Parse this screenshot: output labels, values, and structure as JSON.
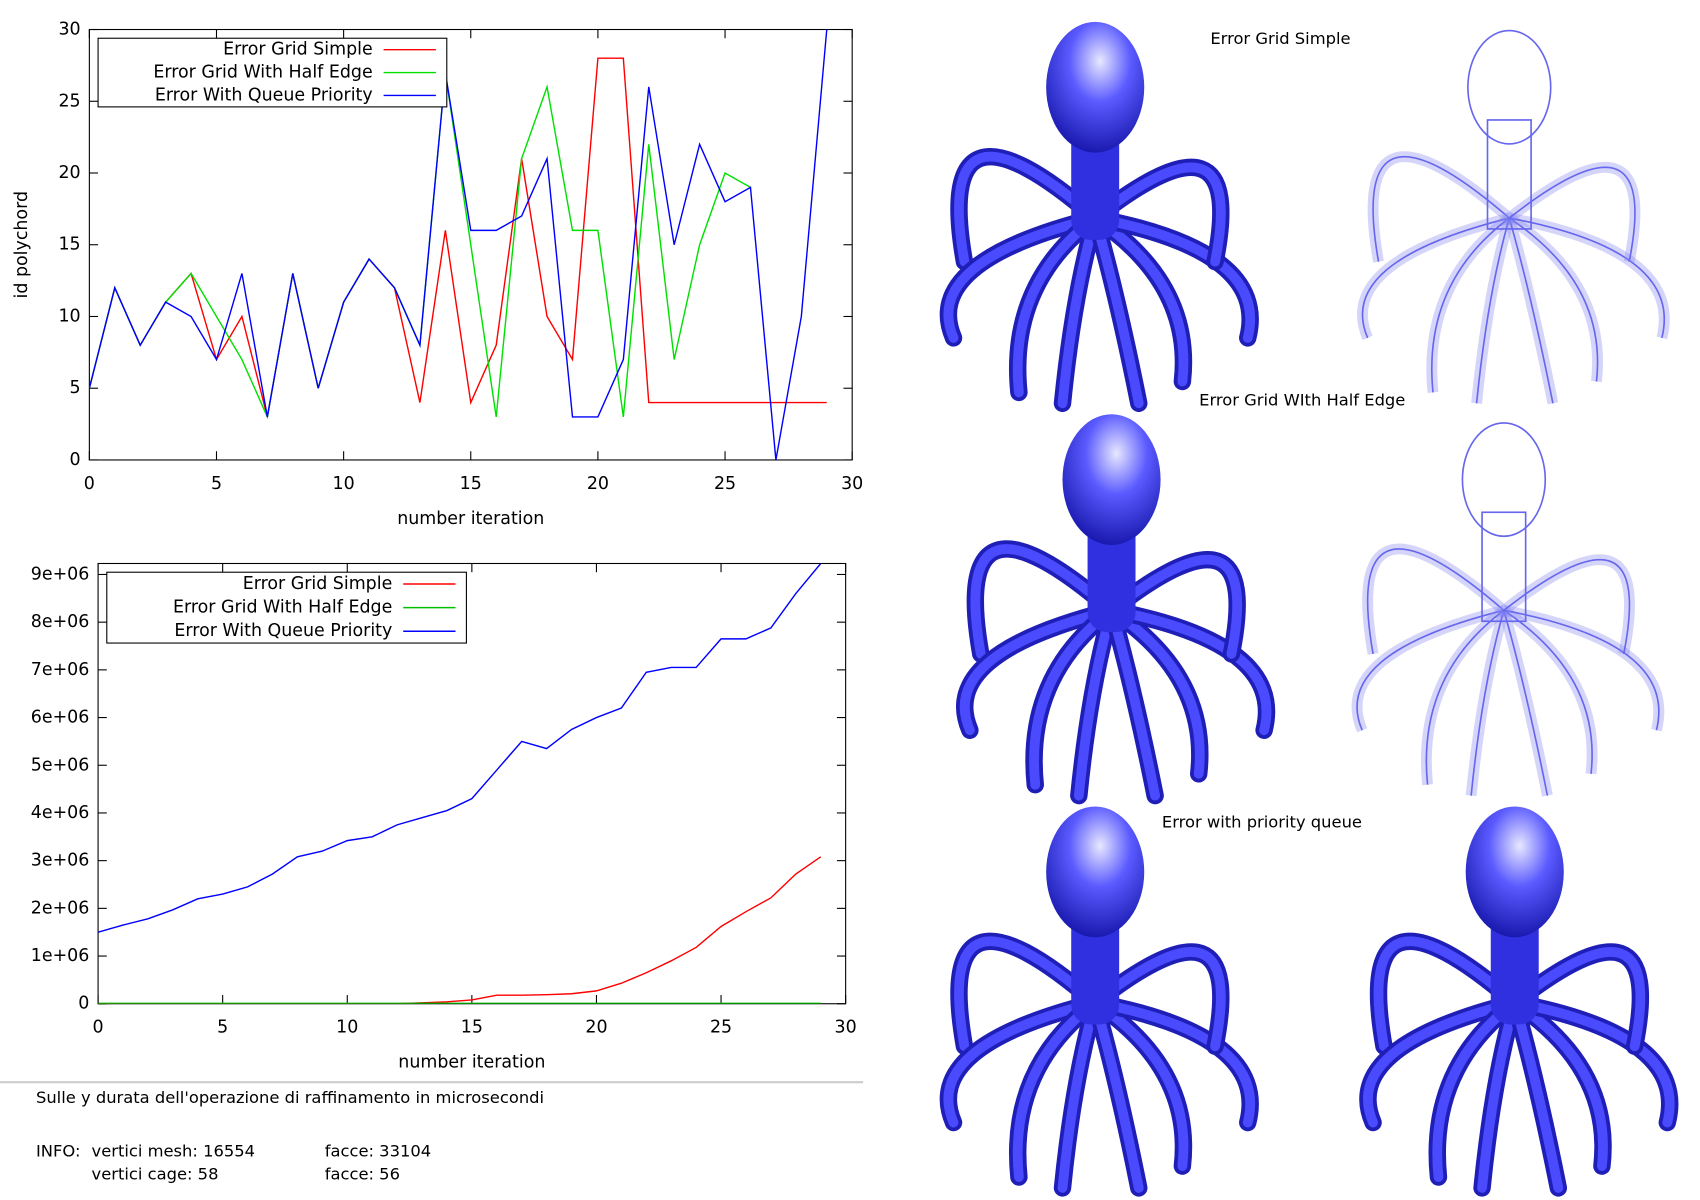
{
  "chart_data": [
    {
      "type": "line",
      "xlabel": "number iteration",
      "ylabel": "id polychord",
      "x": [
        0,
        1,
        2,
        3,
        4,
        5,
        6,
        7,
        8,
        9,
        10,
        11,
        12,
        13,
        14,
        15,
        16,
        17,
        18,
        19,
        20,
        21,
        22,
        23,
        24,
        25,
        26,
        27,
        28,
        29
      ],
      "xlim": [
        0,
        30
      ],
      "ylim": [
        0,
        30
      ],
      "xticks": [
        0,
        5,
        10,
        15,
        20,
        25,
        30
      ],
      "yticks": [
        0,
        5,
        10,
        15,
        20,
        25,
        30
      ],
      "legend": "upper left",
      "series": [
        {
          "name": "Error Grid Simple",
          "color": "#ff0000",
          "values": [
            5,
            12,
            8,
            11,
            13,
            7,
            10,
            3,
            13,
            5,
            11,
            14,
            12,
            4,
            16,
            4,
            8,
            21,
            10,
            7,
            28,
            28,
            4,
            4,
            4,
            4,
            4,
            4,
            4,
            4
          ]
        },
        {
          "name": "Error Grid With Half Edge",
          "color": "#00e000",
          "values": [
            5,
            12,
            8,
            11,
            13,
            10,
            7,
            3,
            13,
            5,
            11,
            14,
            12,
            8,
            27,
            15,
            3,
            21,
            26,
            16,
            16,
            3,
            22,
            7,
            15,
            20,
            19,
            null,
            null,
            null
          ]
        },
        {
          "name": "Error With Queue Priority",
          "color": "#0000ff",
          "values": [
            5,
            12,
            8,
            11,
            10,
            7,
            13,
            3,
            13,
            5,
            11,
            14,
            12,
            8,
            27,
            16,
            16,
            17,
            21,
            3,
            3,
            7,
            26,
            15,
            22,
            18,
            19,
            0,
            10,
            30
          ]
        }
      ]
    },
    {
      "type": "line",
      "xlabel": "number iteration",
      "x": [
        0,
        1,
        2,
        3,
        4,
        5,
        6,
        7,
        8,
        9,
        10,
        11,
        12,
        13,
        14,
        15,
        16,
        17,
        18,
        19,
        20,
        21,
        22,
        23,
        24,
        25,
        26,
        27,
        28,
        29
      ],
      "xlim": [
        0,
        30
      ],
      "ylim": [
        0,
        9230000
      ],
      "xticks": [
        0,
        5,
        10,
        15,
        20,
        25,
        30
      ],
      "yticks": [
        0,
        {
          "value": 1000000,
          "label": "1e+06"
        },
        {
          "value": 2000000,
          "label": "2e+06"
        },
        {
          "value": 3000000,
          "label": "3e+06"
        },
        {
          "value": 4000000,
          "label": "4e+06"
        },
        {
          "value": 5000000,
          "label": "5e+06"
        },
        {
          "value": 6000000,
          "label": "6e+06"
        },
        {
          "value": 7000000,
          "label": "7e+06"
        },
        {
          "value": 8000000,
          "label": "8e+06"
        },
        {
          "value": 9000000,
          "label": "9e+06"
        }
      ],
      "legend": "upper left",
      "series": [
        {
          "name": "Error Grid Simple",
          "color": "#ff0000",
          "values": [
            0,
            0,
            0,
            0,
            0,
            0,
            0,
            0,
            0,
            0,
            0,
            0,
            0,
            20000,
            40000,
            80000,
            180000,
            180000,
            190000,
            210000,
            270000,
            430000,
            650000,
            900000,
            1180000,
            1620000,
            1930000,
            2220000,
            2720000,
            3080000
          ]
        },
        {
          "name": "Error Grid With Half Edge",
          "color": "#00c000",
          "values": [
            10000,
            10000,
            10000,
            10000,
            10000,
            10000,
            10000,
            10000,
            10000,
            10000,
            10000,
            10000,
            10000,
            10000,
            10000,
            10000,
            10000,
            10000,
            10000,
            10000,
            10000,
            10000,
            10000,
            10000,
            10000,
            10000,
            10000,
            10000,
            10000,
            10000
          ]
        },
        {
          "name": "Error With Queue Priority",
          "color": "#0000ff",
          "values": [
            1500000,
            1650000,
            1780000,
            1970000,
            2200000,
            2300000,
            2450000,
            2720000,
            3080000,
            3200000,
            3420000,
            3500000,
            3750000,
            3900000,
            4050000,
            4300000,
            4900000,
            5500000,
            5350000,
            5750000,
            6000000,
            6200000,
            6950000,
            7050000,
            7050000,
            7650000,
            7650000,
            7880000,
            8600000,
            9230000
          ]
        }
      ]
    }
  ],
  "note": "Sulle y durata dell'operazione di raffinamento in microsecondi",
  "info": {
    "label": "INFO:",
    "mesh_vertices": "vertici mesh: 16554",
    "mesh_faces": "facce: 33104",
    "cage_vertices": "vertici cage: 58",
    "cage_faces": "facce: 56"
  },
  "renders": [
    {
      "title": "Error Grid Simple"
    },
    {
      "title": "Error Grid WIth Half Edge"
    },
    {
      "title": "Error with priority queue"
    }
  ]
}
